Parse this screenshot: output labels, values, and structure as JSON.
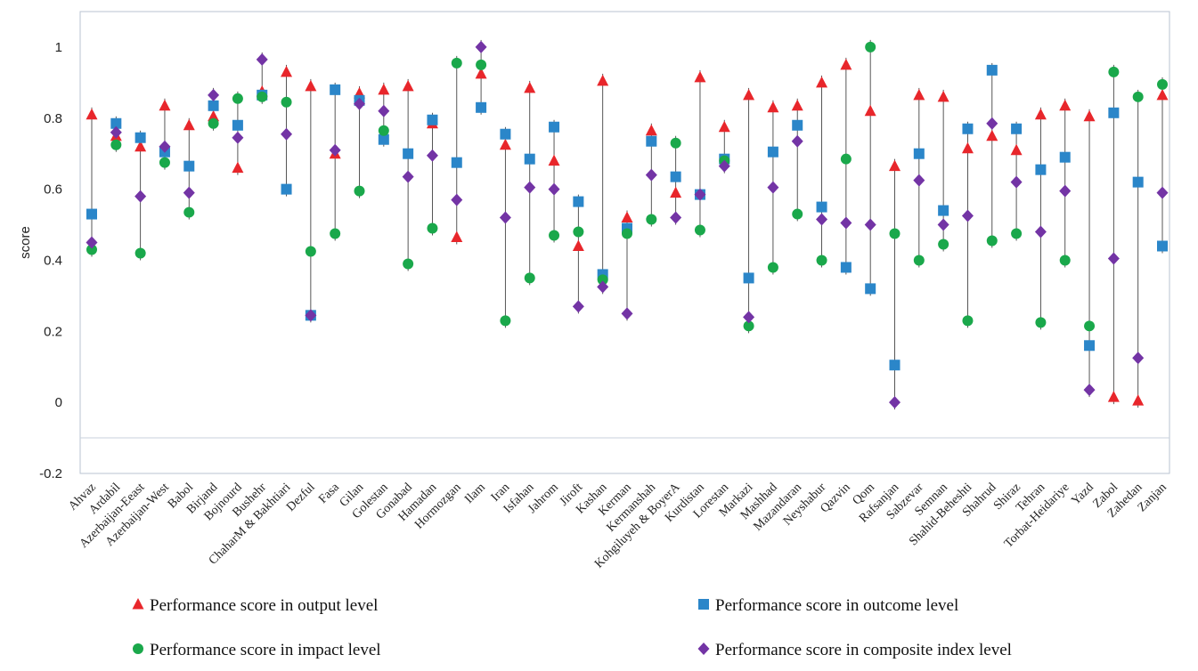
{
  "chart_data": {
    "type": "scatter",
    "ylabel": "score",
    "xlabel": "",
    "ylim": [
      -0.2,
      1.1
    ],
    "yticks": [
      -0.2,
      0,
      0.2,
      0.4,
      0.6,
      0.8,
      1
    ],
    "ytick_labels": [
      "-0.2",
      "0",
      "0.2",
      "0.4",
      "0.6",
      "0.8",
      "1"
    ],
    "grid": false,
    "legend_position": "bottom",
    "categories": [
      "Ahvaz",
      "Ardabil",
      "Azerbaijan-Eeast",
      "Azerbaijan-West",
      "Babol",
      "Birjand",
      "Bojnourd",
      "Bushehr",
      "ChaharM & Bakhtiari",
      "Dezful",
      "Fasa",
      "Gilan",
      "Golestan",
      "Gonabad",
      "Hamadan",
      "Hormozgan",
      "Ilam",
      "Iran",
      "Isfahan",
      "Jahrom",
      "Jiroft",
      "Kashan",
      "Kerman",
      "Kermanshah",
      "Kohgiluyeh & BoyerA",
      "Kurdistan",
      "Lorestan",
      "Markazi",
      "Mashhad",
      "Mazandaran",
      "Neyshabur",
      "Qazvin",
      "Qom",
      "Rafsanjan",
      "Sabzevar",
      "Semnan",
      "Shahid-Beheshti",
      "Shahrud",
      "Shiraz",
      "Tehran",
      "Torbat-Heidariye",
      "Yazd",
      "Zabol",
      "Zahedan",
      "Zanjan"
    ],
    "series": [
      {
        "name": "Performance score in output level",
        "marker": "triangle",
        "color": "#e8262b",
        "values": [
          0.81,
          0.75,
          0.72,
          0.835,
          0.78,
          0.805,
          0.66,
          0.875,
          0.93,
          0.89,
          0.7,
          0.87,
          0.88,
          0.89,
          0.785,
          0.465,
          0.925,
          0.725,
          0.885,
          0.68,
          0.44,
          0.905,
          0.52,
          0.765,
          0.59,
          0.915,
          0.775,
          0.865,
          0.83,
          0.835,
          0.9,
          0.95,
          0.82,
          0.665,
          0.865,
          0.86,
          0.715,
          0.75,
          0.71,
          0.81,
          0.835,
          0.805,
          0.015,
          0.005,
          0.865
        ]
      },
      {
        "name": "Performance score in outcome level",
        "marker": "square",
        "color": "#2b86c9",
        "values": [
          0.53,
          0.785,
          0.745,
          0.705,
          0.665,
          0.835,
          0.78,
          0.865,
          0.6,
          0.245,
          0.88,
          0.85,
          0.74,
          0.7,
          0.795,
          0.675,
          0.83,
          0.755,
          0.685,
          0.775,
          0.565,
          0.36,
          0.49,
          0.735,
          0.635,
          0.585,
          0.685,
          0.35,
          0.705,
          0.78,
          0.55,
          0.38,
          0.32,
          0.105,
          0.7,
          0.54,
          0.77,
          0.935,
          0.77,
          0.655,
          0.69,
          0.16,
          0.815,
          0.62,
          0.44
        ]
      },
      {
        "name": "Performance score in impact level",
        "marker": "circle",
        "color": "#1aa84b",
        "values": [
          0.43,
          0.725,
          0.42,
          0.675,
          0.535,
          0.785,
          0.855,
          0.86,
          0.845,
          0.425,
          0.475,
          0.595,
          0.765,
          0.39,
          0.49,
          0.955,
          0.95,
          0.23,
          0.35,
          0.47,
          0.48,
          0.345,
          0.475,
          0.515,
          0.73,
          0.485,
          0.68,
          0.215,
          0.38,
          0.53,
          0.4,
          0.685,
          1.0,
          0.475,
          0.4,
          0.445,
          0.23,
          0.455,
          0.475,
          0.225,
          0.4,
          0.215,
          0.93,
          0.86,
          0.895
        ]
      },
      {
        "name": "Performance score in composite index level",
        "marker": "diamond",
        "color": "#7334a5",
        "values": [
          0.45,
          0.76,
          0.58,
          0.72,
          0.59,
          0.865,
          0.745,
          0.965,
          0.755,
          0.245,
          0.71,
          0.84,
          0.82,
          0.635,
          0.695,
          0.57,
          1.0,
          0.52,
          0.605,
          0.6,
          0.27,
          0.325,
          0.25,
          0.64,
          0.52,
          0.585,
          0.665,
          0.24,
          0.605,
          0.735,
          0.515,
          0.505,
          0.5,
          0.0,
          0.625,
          0.5,
          0.525,
          0.785,
          0.62,
          0.48,
          0.595,
          0.035,
          0.405,
          0.125,
          0.59
        ]
      }
    ]
  }
}
